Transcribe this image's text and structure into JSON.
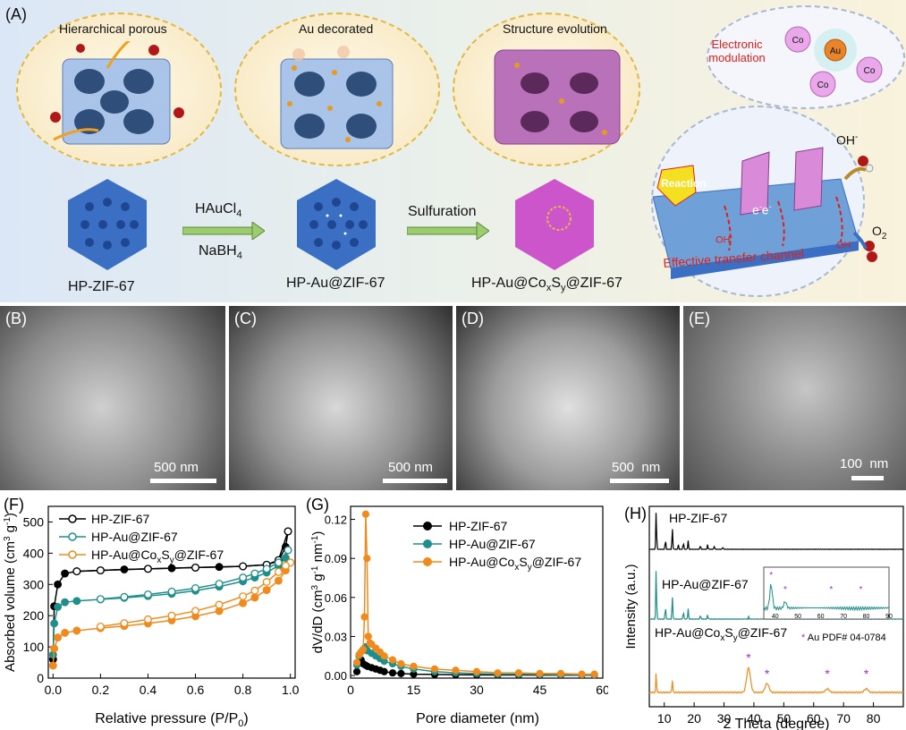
{
  "schematic": {
    "label": "(A)",
    "bubble1_title": "Hierarchical porous",
    "bubble2_title": "Au decorated",
    "bubble3_title": "Structure evolution",
    "bubble4_title": "Electronic modulation",
    "step1_top": "HAuCl",
    "step1_top_sub": "4",
    "step1_bottom": "NaBH",
    "step1_bottom_sub": "4",
    "step2": "Sulfuration",
    "sample1": "HP-ZIF-67",
    "sample2": "HP-Au@ZIF-67",
    "sample3_pre": "HP-Au@Co",
    "sample3_x": "x",
    "sample3_mid": "S",
    "sample3_y": "y",
    "sample3_post": "@ZIF-67",
    "reaction": "Reaction",
    "oh_top": "OH",
    "oh_minus": "-",
    "o2": "O",
    "o2_sub": "2",
    "e1": "e",
    "e2": "e",
    "oh_bottom1": "OH",
    "oh_bottom2": "OH",
    "channel": "Effective transfer channel",
    "co": "Co",
    "au": "Au",
    "colors": {
      "channel_text": "#e0201a",
      "cube": "#3a6fc4",
      "sulfide": "#cc66cc",
      "gold": "#e69a1f"
    }
  },
  "sem": [
    {
      "label": "(B)",
      "scale": "500 nm"
    },
    {
      "label": "(C)",
      "scale": "500 nm"
    },
    {
      "label": "(D)",
      "scale": "500  nm"
    },
    {
      "label": "(E)",
      "scale": "100  nm"
    }
  ],
  "chart_data": [
    {
      "panel": "(F)",
      "type": "line",
      "xlabel": "Relative pressure (P/P",
      "xlabel_sub": "0",
      "ylabel": "Absorbed volume (cm",
      "xlim": [
        -0.02,
        1.02
      ],
      "ylim": [
        0,
        550
      ],
      "xticks": [
        "0.0",
        "0.2",
        "0.4",
        "0.6",
        "0.8",
        "1.0"
      ],
      "yticks": [
        "0",
        "100",
        "200",
        "300",
        "400",
        "500"
      ],
      "legend_placement": "top-left",
      "series": [
        {
          "name": "HP-ZIF-67",
          "color": "#000000",
          "adsorption": {
            "x": [
              0,
              0.005,
              0.02,
              0.05,
              0.1,
              0.2,
              0.3,
              0.4,
              0.5,
              0.6,
              0.7,
              0.8,
              0.9,
              0.95,
              0.98,
              0.99
            ],
            "y": [
              60,
              230,
              300,
              335,
              342,
              345,
              348,
              350,
              352,
              354,
              356,
              358,
              363,
              375,
              420,
              470
            ]
          },
          "desorption": {
            "x": [
              0.99,
              0.95,
              0.9,
              0.8,
              0.6,
              0.4,
              0.2,
              0.1
            ],
            "y": [
              470,
              378,
              363,
              358,
              354,
              350,
              345,
              342
            ]
          }
        },
        {
          "name": "HP-Au@ZIF-67",
          "color": "#1e8f8a",
          "adsorption": {
            "x": [
              0,
              0.005,
              0.02,
              0.05,
              0.1,
              0.2,
              0.3,
              0.4,
              0.5,
              0.6,
              0.7,
              0.8,
              0.85,
              0.9,
              0.95,
              0.98,
              0.99
            ],
            "y": [
              75,
              175,
              228,
              243,
              247,
              252,
              257,
              263,
              270,
              280,
              293,
              310,
              322,
              338,
              360,
              385,
              410
            ]
          },
          "desorption": {
            "x": [
              0.99,
              0.95,
              0.9,
              0.85,
              0.8,
              0.7,
              0.6,
              0.5,
              0.4,
              0.3,
              0.2
            ],
            "y": [
              410,
              370,
              350,
              335,
              322,
              302,
              288,
              277,
              268,
              260,
              253
            ]
          }
        },
        {
          "name": "HP-Au@Co_xS_y@ZIF-67",
          "color": "#f08a1c",
          "adsorption": {
            "x": [
              0,
              0.005,
              0.02,
              0.05,
              0.1,
              0.2,
              0.3,
              0.4,
              0.5,
              0.6,
              0.7,
              0.8,
              0.85,
              0.9,
              0.95,
              0.98,
              1.0
            ],
            "y": [
              40,
              95,
              130,
              145,
              152,
              160,
              167,
              175,
              185,
              198,
              215,
              240,
              258,
              282,
              312,
              345,
              370
            ]
          },
          "desorption": {
            "x": [
              1.0,
              0.98,
              0.95,
              0.9,
              0.85,
              0.8,
              0.7,
              0.6,
              0.5,
              0.4,
              0.3,
              0.2
            ],
            "y": [
              370,
              360,
              340,
              308,
              280,
              262,
              235,
              215,
              200,
              188,
              176,
              165
            ]
          }
        }
      ]
    },
    {
      "panel": "(G)",
      "type": "line",
      "xlabel": "Pore diameter (nm)",
      "ylabel": "dV/dD (cm",
      "xlim": [
        0,
        60
      ],
      "ylim": [
        -0.002,
        0.13
      ],
      "xticks": [
        "0",
        "15",
        "30",
        "45",
        "60"
      ],
      "yticks": [
        "0.00",
        "0.03",
        "0.06",
        "0.09",
        "0.12"
      ],
      "legend_placement": "top-right",
      "series": [
        {
          "name": "HP-ZIF-67",
          "color": "#000000",
          "x": [
            1.5,
            2,
            2.5,
            3,
            3.5,
            4,
            5,
            6,
            7,
            8,
            10,
            12,
            15,
            20,
            25,
            30,
            35,
            40,
            45,
            50,
            55,
            58
          ],
          "y": [
            0.003,
            0.01,
            0.012,
            0.009,
            0.008,
            0.007,
            0.006,
            0.005,
            0.004,
            0.003,
            0.002,
            0.0015,
            0.001,
            0.0008,
            0.0006,
            0.0005,
            0.0004,
            0.0004,
            0.0003,
            0.0003,
            0.0003,
            0.0003
          ]
        },
        {
          "name": "HP-Au@ZIF-67",
          "color": "#1e8f8a",
          "x": [
            1.5,
            2,
            2.5,
            3,
            3.5,
            4,
            5,
            6,
            7,
            8,
            10,
            12,
            15,
            20,
            25,
            30,
            35,
            40,
            45,
            50,
            55,
            58
          ],
          "y": [
            0.008,
            0.015,
            0.018,
            0.02,
            0.022,
            0.019,
            0.017,
            0.015,
            0.013,
            0.011,
            0.009,
            0.007,
            0.005,
            0.003,
            0.002,
            0.0015,
            0.001,
            0.001,
            0.0008,
            0.0007,
            0.0006,
            0.0005
          ]
        },
        {
          "name": "HP-Au@Co_xS_y@ZIF-67",
          "color": "#f08a1c",
          "x": [
            1.5,
            2,
            2.5,
            3,
            3.3,
            3.6,
            3.9,
            4.2,
            4.6,
            5,
            6,
            7,
            8,
            10,
            12,
            15,
            20,
            25,
            30,
            35,
            40,
            45,
            50,
            55,
            58
          ],
          "y": [
            0.01,
            0.016,
            0.018,
            0.02,
            0.045,
            0.124,
            0.09,
            0.03,
            0.025,
            0.024,
            0.021,
            0.018,
            0.015,
            0.012,
            0.009,
            0.007,
            0.005,
            0.004,
            0.003,
            0.002,
            0.002,
            0.0015,
            0.0015,
            0.001,
            0.001
          ]
        }
      ]
    },
    {
      "panel": "(H)",
      "type": "line",
      "xlabel": "2 Theta (degree)",
      "ylabel": "Intensity (a.u.)",
      "xlim": [
        5,
        90
      ],
      "xticks": [
        "10",
        "20",
        "30",
        "40",
        "50",
        "60",
        "70",
        "80"
      ],
      "series": [
        {
          "name": "HP-ZIF-67",
          "color": "#000000",
          "peaks": [
            7.3,
            10.4,
            12.7,
            14.7,
            16.4,
            18.0,
            22.1,
            24.5,
            26.7,
            29.6
          ],
          "heights": [
            1.0,
            0.25,
            0.55,
            0.12,
            0.18,
            0.22,
            0.1,
            0.12,
            0.08,
            0.06
          ]
        },
        {
          "name": "HP-Au@ZIF-67",
          "color": "#1e8f8a",
          "peaks": [
            7.3,
            10.4,
            12.7,
            16.4,
            18.0,
            22.1,
            24.5,
            38.2,
            44.4
          ],
          "heights": [
            1.0,
            0.25,
            0.45,
            0.15,
            0.2,
            0.08,
            0.08,
            0.05,
            0.03
          ]
        },
        {
          "name": "HP-Au@Co_xS_y@ZIF-67",
          "color": "#f08a1c",
          "peaks": [
            7.3,
            12.7,
            38.2,
            44.4,
            64.6,
            77.6
          ],
          "heights": [
            0.45,
            0.3,
            0.55,
            0.2,
            0.08,
            0.08
          ]
        }
      ],
      "marker_peaks": [
        38.2,
        44.4,
        64.6,
        77.6
      ],
      "annotation": "Au PDF# 04-0784",
      "inset": {
        "xlim": [
          35,
          90
        ],
        "xticks": [
          "40",
          "50",
          "60",
          "70",
          "80",
          "90"
        ]
      }
    }
  ]
}
